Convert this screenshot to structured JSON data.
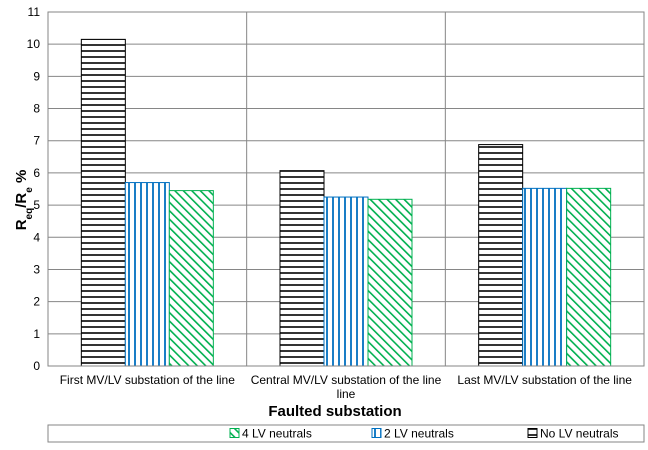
{
  "chart_data": {
    "type": "bar",
    "categories": [
      "First MV/LV substation of the line",
      "Central MV/LV substation of the line",
      "Last MV/LV substation of the line"
    ],
    "category_lines": [
      [
        "First MV/LV substation of the line"
      ],
      [
        "Central MV/LV substation of the line",
        "line"
      ],
      [
        "Last MV/LV substation of the line"
      ]
    ],
    "series": [
      {
        "name": "No LV neutrals",
        "values": [
          10.15,
          6.07,
          6.88
        ],
        "color": "#000000",
        "pattern": "horizontal"
      },
      {
        "name": "2 LV neutrals",
        "values": [
          5.7,
          5.25,
          5.52
        ],
        "color": "#0070C0",
        "pattern": "vertical"
      },
      {
        "name": "4 LV neutrals",
        "values": [
          5.45,
          5.18,
          5.52
        ],
        "color": "#00B050",
        "pattern": "diagonal"
      }
    ],
    "legend_order": [
      "4 LV neutrals",
      "2 LV neutrals",
      "No LV neutrals"
    ],
    "xlabel": "Faulted substation",
    "ylabel_main": "R",
    "ylabel_sub1": "eq",
    "ylabel_mid": "/R",
    "ylabel_sub2": "e",
    "ylabel_tail": " %",
    "ylim": [
      0,
      11
    ],
    "ytick_step": 1,
    "grid": true,
    "legend_position": "bottom"
  }
}
